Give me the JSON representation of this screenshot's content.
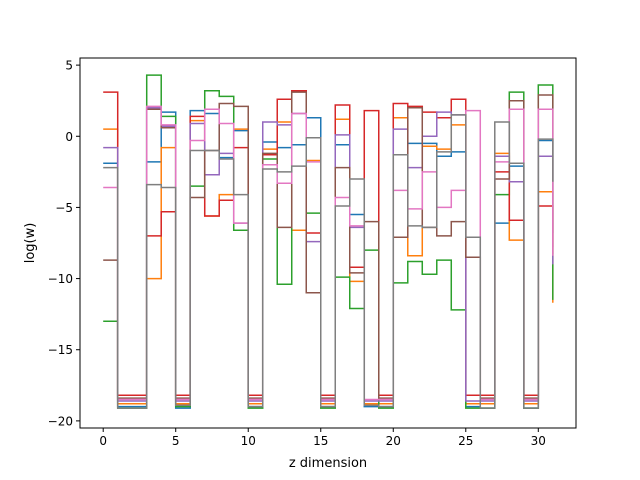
{
  "chart_data": {
    "type": "line",
    "drawstyle": "steps-post",
    "title": "",
    "xlabel": "z dimension",
    "ylabel": "log(w)",
    "xlim": [
      -1.6,
      32.6
    ],
    "ylim": [
      -20.5,
      5.5
    ],
    "xticks": [
      0,
      5,
      10,
      15,
      20,
      25,
      30
    ],
    "xtick_labels": [
      "0",
      "5",
      "10",
      "15",
      "20",
      "25",
      "30"
    ],
    "yticks": [
      5,
      0,
      -5,
      -10,
      -15,
      -20
    ],
    "ytick_labels": [
      "5",
      "0",
      "−5",
      "−10",
      "−15",
      "−20"
    ],
    "grid": false,
    "x": [
      0,
      1,
      2,
      3,
      4,
      5,
      6,
      7,
      8,
      9,
      10,
      11,
      12,
      13,
      14,
      15,
      16,
      17,
      18,
      19,
      20,
      21,
      22,
      23,
      24,
      25,
      26,
      27,
      28,
      29,
      30,
      31
    ],
    "series": [
      {
        "color": "#1f77b4",
        "values": [
          -1.9,
          -19.0,
          -19.0,
          -1.8,
          1.7,
          -19.1,
          1.8,
          1.6,
          -1.5,
          0.4,
          -19.0,
          -0.4,
          -0.8,
          -0.6,
          1.3,
          -19.0,
          -0.6,
          -5.5,
          -19.0,
          -19.0,
          1.3,
          -0.5,
          -0.5,
          -1.4,
          -1.1,
          -19.0,
          -19.1,
          -6.1,
          -2.1,
          -19.1,
          -0.3,
          -6.8
        ]
      },
      {
        "color": "#ff7f0e",
        "values": [
          0.5,
          -18.8,
          -18.8,
          -10.0,
          -0.8,
          -18.8,
          1.1,
          -5.6,
          -4.1,
          0.5,
          -18.8,
          -0.9,
          1.0,
          -6.6,
          -1.7,
          -18.8,
          1.2,
          -10.2,
          -18.8,
          -18.8,
          1.3,
          -8.4,
          -0.7,
          -0.9,
          0.8,
          -18.8,
          -18.8,
          -1.2,
          -7.3,
          -18.8,
          -3.9,
          -11.7
        ]
      },
      {
        "color": "#2ca02c",
        "values": [
          -13.0,
          -19.1,
          -19.1,
          4.3,
          1.4,
          -19.0,
          -3.5,
          3.2,
          2.8,
          -6.6,
          -19.1,
          -1.6,
          -10.4,
          3.2,
          -5.4,
          -19.1,
          -9.9,
          -12.1,
          -8.0,
          -19.1,
          -10.3,
          -8.8,
          -9.7,
          -8.7,
          -12.2,
          -19.1,
          -19.1,
          -4.1,
          3.1,
          -19.1,
          3.6,
          -11.5
        ]
      },
      {
        "color": "#d62728",
        "values": [
          3.1,
          -18.2,
          -18.2,
          -7.0,
          -5.3,
          -18.2,
          1.4,
          -5.6,
          -4.5,
          -0.8,
          -18.2,
          -1.3,
          2.6,
          3.2,
          -6.8,
          -18.2,
          2.2,
          -9.2,
          1.8,
          -18.2,
          2.3,
          2.1,
          1.7,
          1.3,
          2.6,
          -18.2,
          -18.2,
          -2.5,
          -5.9,
          -18.2,
          -4.9,
          -7.8
        ]
      },
      {
        "color": "#9467bd",
        "values": [
          -0.8,
          -18.6,
          -18.6,
          2.0,
          0.7,
          -18.6,
          0.9,
          -2.7,
          -1.2,
          -6.1,
          -18.6,
          1.0,
          0.8,
          1.6,
          -7.4,
          -18.6,
          0.1,
          -6.4,
          -18.6,
          -18.6,
          0.5,
          -2.2,
          0.0,
          1.7,
          1.5,
          -18.6,
          -18.6,
          -1.4,
          -3.2,
          -18.6,
          -1.4,
          -9.0
        ]
      },
      {
        "color": "#8c564b",
        "values": [
          -8.7,
          -18.4,
          -18.4,
          1.9,
          0.6,
          -18.4,
          -4.3,
          -1.0,
          2.3,
          2.1,
          -18.4,
          -1.2,
          -6.4,
          3.1,
          -11.0,
          -18.4,
          -2.2,
          -9.6,
          -6.0,
          -18.4,
          -7.1,
          2.0,
          -6.4,
          -7.0,
          -6.0,
          -8.5,
          -18.4,
          -3.0,
          2.5,
          -18.4,
          2.9,
          -8.3
        ]
      },
      {
        "color": "#e377c2",
        "values": [
          -3.6,
          -18.5,
          -18.5,
          2.1,
          0.8,
          -18.5,
          -0.3,
          1.9,
          0.9,
          -6.1,
          -18.5,
          -2.0,
          -3.3,
          1.6,
          -1.8,
          -18.5,
          -4.3,
          -6.3,
          -18.5,
          -18.5,
          -3.8,
          -5.1,
          -2.5,
          -5.0,
          -3.8,
          1.8,
          -18.5,
          -1.8,
          1.9,
          -18.5,
          1.9,
          -8.4
        ]
      },
      {
        "color": "#7f7f7f",
        "values": [
          -2.2,
          -19.1,
          -19.1,
          -3.4,
          -3.6,
          -18.9,
          -1.0,
          -1.0,
          -1.6,
          -4.1,
          -19.0,
          -2.3,
          -2.5,
          -2.1,
          -0.1,
          -19.0,
          -4.9,
          -3.0,
          -18.9,
          -19.0,
          -1.3,
          -6.3,
          -6.4,
          -1.1,
          1.5,
          -7.1,
          -19.1,
          1.0,
          -1.9,
          -19.1,
          -0.2,
          -3.2
        ]
      }
    ]
  }
}
